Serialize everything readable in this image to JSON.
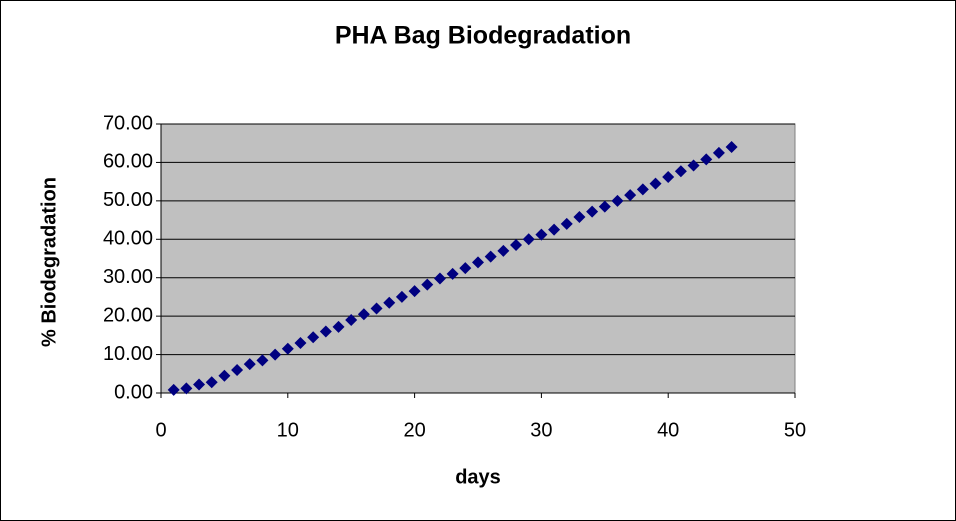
{
  "chart_data": {
    "type": "scatter",
    "title": "PHA Bag Biodegradation",
    "x_label": "days",
    "y_label": "% Biodegradation",
    "series": [
      {
        "color": "#000080",
        "x": [
          1,
          2,
          3,
          4,
          5,
          6,
          7,
          8,
          9,
          10,
          11,
          12,
          13,
          14,
          15,
          16,
          17,
          18,
          19,
          20,
          21,
          22,
          23,
          24,
          25,
          26,
          27,
          28,
          29,
          30,
          31,
          32,
          33,
          34,
          35,
          36,
          37,
          38,
          39,
          40,
          41,
          42,
          43,
          44,
          45
        ],
        "values": [
          0.8,
          1.2,
          2.2,
          2.8,
          4.5,
          6,
          7.5,
          8.5,
          10,
          11.5,
          13,
          14.5,
          16,
          17.2,
          19,
          20.5,
          22,
          23.5,
          25,
          26.5,
          28.2,
          29.8,
          31,
          32.5,
          34,
          35.5,
          37,
          38.5,
          40,
          41.2,
          42.5,
          44,
          45.8,
          47.2,
          48.5,
          50,
          51.5,
          53,
          54.5,
          56.2,
          57.7,
          59.2,
          60.8,
          62.5,
          64
        ]
      }
    ],
    "xlim": [
      0,
      50
    ],
    "xticks": [
      0,
      10,
      20,
      30,
      40,
      50
    ],
    "ylim": [
      0,
      70
    ],
    "yticks": [
      {
        "value": 0,
        "label": "0.00"
      },
      {
        "value": 10,
        "label": "10.00"
      },
      {
        "value": 20,
        "label": "20.00"
      },
      {
        "value": 30,
        "label": "30.00"
      },
      {
        "value": 40,
        "label": "40.00"
      },
      {
        "value": 50,
        "label": "50.00"
      },
      {
        "value": 60,
        "label": "60.00"
      },
      {
        "value": 70,
        "label": "70.00"
      }
    ],
    "grid": true,
    "plot_background": "#c0c0c0"
  }
}
